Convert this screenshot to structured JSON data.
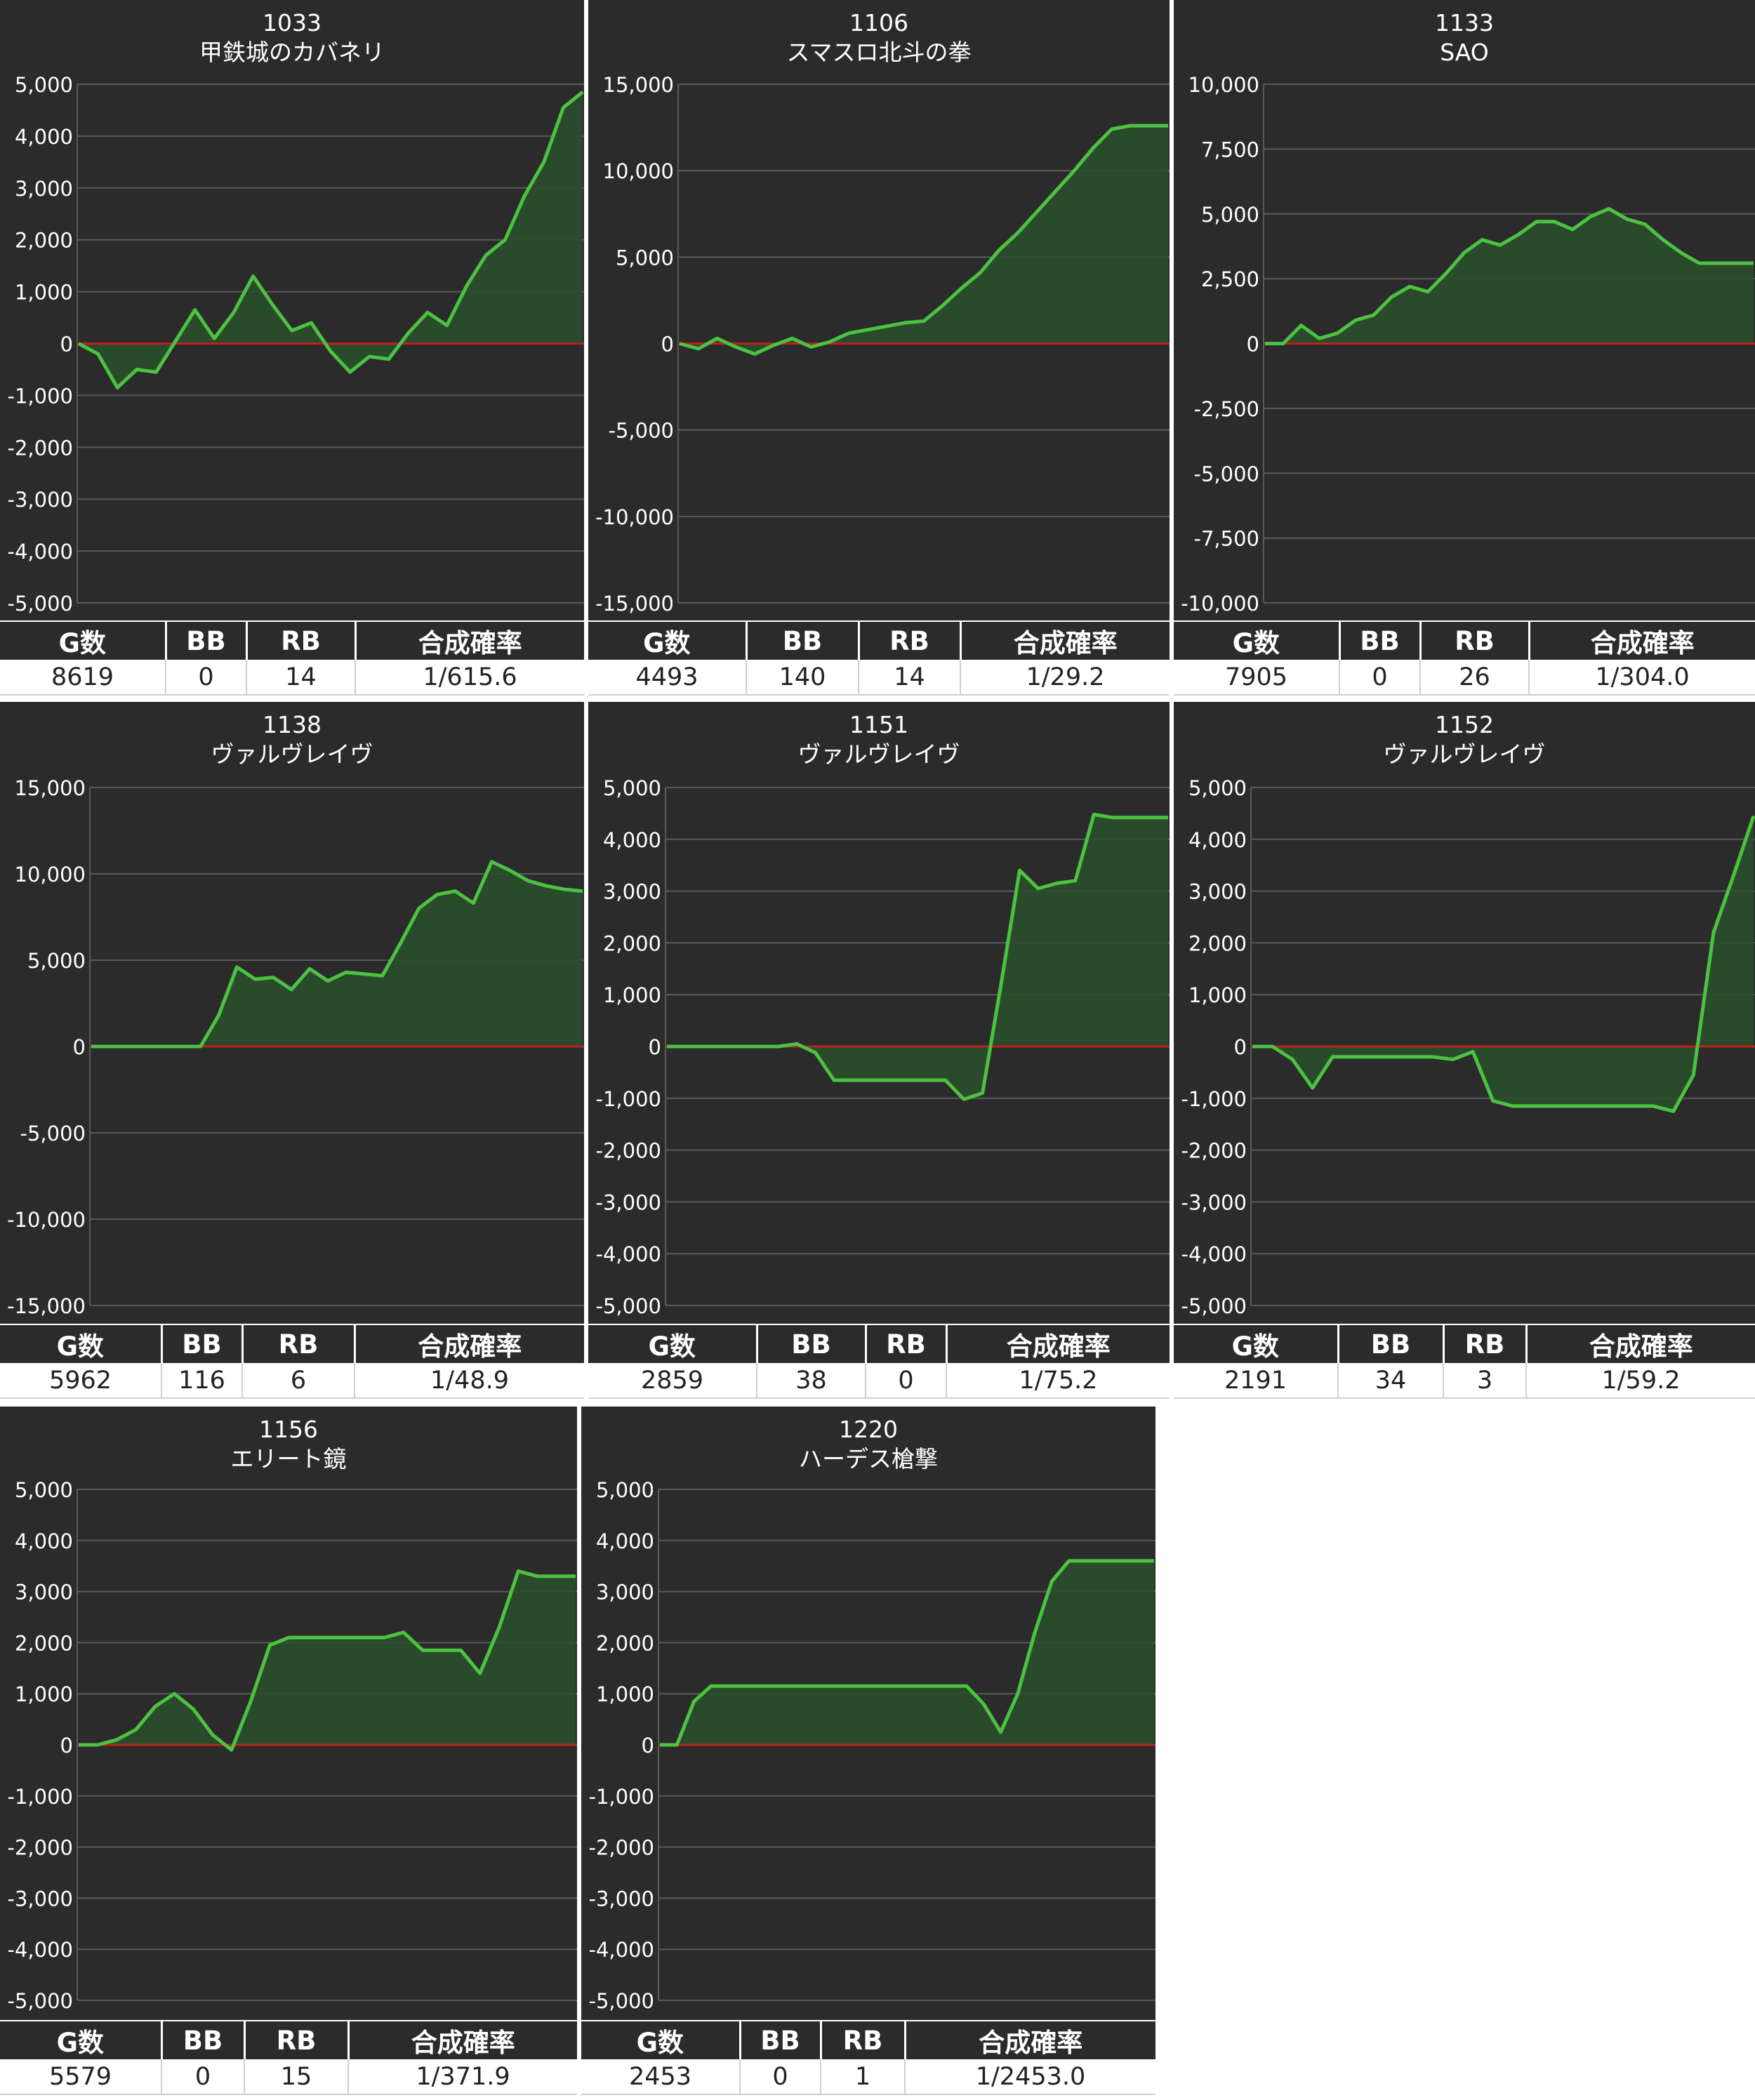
{
  "colors": {
    "background": "#2b2b2b",
    "grid": "#5a5a5a",
    "zero_line": "#c0201e",
    "line": "#4cc242",
    "fill": "#2a4f2b",
    "axis_text": "#ffffff",
    "header_text": "#ffffff"
  },
  "table_headers": [
    "G数",
    "BB",
    "RB",
    "合成確率"
  ],
  "charts": [
    {
      "id": "c1033",
      "machine_no": "1033",
      "name": "甲鉄城のカバネリ",
      "stats": {
        "g": "8619",
        "bb": "0",
        "rb": "14",
        "prob": "1/615.6"
      },
      "chart_data": {
        "type": "area",
        "title": "1033",
        "subtitle": "甲鉄城のカバネリ",
        "ylim": [
          -5000,
          5000
        ],
        "yticks": [
          "5,000",
          "4,000",
          "3,000",
          "2,000",
          "1,000",
          "0",
          "-1,000",
          "-2,000",
          "-3,000",
          "-4,000",
          "-5,000"
        ],
        "y": [
          0,
          -200,
          -850,
          -500,
          -550,
          50,
          650,
          100,
          600,
          1300,
          750,
          250,
          400,
          -150,
          -550,
          -250,
          -300,
          200,
          600,
          350,
          1100,
          1700,
          2000,
          2850,
          3500,
          4550,
          4850
        ]
      }
    },
    {
      "id": "c1106",
      "machine_no": "1106",
      "name": "スマスロ北斗の拳",
      "stats": {
        "g": "4493",
        "bb": "140",
        "rb": "14",
        "prob": "1/29.2"
      },
      "chart_data": {
        "type": "area",
        "title": "1106",
        "subtitle": "スマスロ北斗の拳",
        "ylim": [
          -15000,
          15000
        ],
        "yticks": [
          "15,000",
          "10,000",
          "5,000",
          "0",
          "-5,000",
          "-10,000",
          "-15,000"
        ],
        "y": [
          0,
          -300,
          300,
          -200,
          -600,
          -100,
          300,
          -200,
          100,
          600,
          800,
          1000,
          1200,
          1300,
          2200,
          3200,
          4100,
          5400,
          6400,
          7600,
          8800,
          10000,
          11300,
          12400,
          12600,
          12600,
          12600
        ]
      }
    },
    {
      "id": "c1133",
      "machine_no": "1133",
      "name": "SAO",
      "stats": {
        "g": "7905",
        "bb": "0",
        "rb": "26",
        "prob": "1/304.0"
      },
      "chart_data": {
        "type": "area",
        "title": "1133",
        "subtitle": "SAO",
        "ylim": [
          -10000,
          10000
        ],
        "yticks": [
          "10,000",
          "7,500",
          "5,000",
          "2,500",
          "0",
          "-2,500",
          "-5,000",
          "-7,500",
          "-10,000"
        ],
        "y": [
          0,
          0,
          700,
          200,
          400,
          900,
          1100,
          1800,
          2200,
          2000,
          2700,
          3500,
          4000,
          3800,
          4200,
          4700,
          4700,
          4400,
          4900,
          5200,
          4800,
          4600,
          4000,
          3500,
          3100,
          3100,
          3100,
          3100
        ]
      }
    },
    {
      "id": "c1138",
      "machine_no": "1138",
      "name": "ヴァルヴレイヴ",
      "stats": {
        "g": "5962",
        "bb": "116",
        "rb": "6",
        "prob": "1/48.9"
      },
      "chart_data": {
        "type": "area",
        "title": "1138",
        "subtitle": "ヴァルヴレイヴ",
        "ylim": [
          -15000,
          15000
        ],
        "yticks": [
          "15,000",
          "10,000",
          "5,000",
          "0",
          "-5,000",
          "-10,000",
          "-15,000"
        ],
        "y": [
          0,
          0,
          0,
          0,
          0,
          0,
          0,
          1800,
          4600,
          3900,
          4000,
          3300,
          4500,
          3800,
          4300,
          4200,
          4100,
          6000,
          8000,
          8800,
          9000,
          8300,
          10700,
          10200,
          9600,
          9300,
          9100,
          9000
        ]
      }
    },
    {
      "id": "c1151",
      "machine_no": "1151",
      "name": "ヴァルヴレイヴ",
      "stats": {
        "g": "2859",
        "bb": "38",
        "rb": "0",
        "prob": "1/75.2"
      },
      "chart_data": {
        "type": "area",
        "title": "1151",
        "subtitle": "ヴァルヴレイヴ",
        "ylim": [
          -5000,
          5000
        ],
        "yticks": [
          "5,000",
          "4,000",
          "3,000",
          "2,000",
          "1,000",
          "0",
          "-1,000",
          "-2,000",
          "-3,000",
          "-4,000",
          "-5,000"
        ],
        "y": [
          0,
          0,
          0,
          0,
          0,
          0,
          0,
          50,
          -120,
          -650,
          -650,
          -650,
          -650,
          -650,
          -650,
          -650,
          -1020,
          -900,
          1200,
          3400,
          3050,
          3150,
          3200,
          4480,
          4420,
          4420,
          4420,
          4420
        ]
      }
    },
    {
      "id": "c1152",
      "machine_no": "1152",
      "name": "ヴァルヴレイヴ",
      "stats": {
        "g": "2191",
        "bb": "34",
        "rb": "3",
        "prob": "1/59.2"
      },
      "chart_data": {
        "type": "area",
        "title": "1152",
        "subtitle": "ヴァルヴレイヴ",
        "ylim": [
          -5000,
          5000
        ],
        "yticks": [
          "5,000",
          "4,000",
          "3,000",
          "2,000",
          "1,000",
          "0",
          "-1,000",
          "-2,000",
          "-3,000",
          "-4,000",
          "-5,000"
        ],
        "y": [
          0,
          0,
          -250,
          -800,
          -200,
          -200,
          -200,
          -200,
          -200,
          -200,
          -250,
          -100,
          -1050,
          -1150,
          -1150,
          -1150,
          -1150,
          -1150,
          -1150,
          -1150,
          -1150,
          -1250,
          -550,
          2200,
          3300,
          4450
        ]
      }
    },
    {
      "id": "c1156",
      "machine_no": "1156",
      "name": "エリート鏡",
      "stats": {
        "g": "5579",
        "bb": "0",
        "rb": "15",
        "prob": "1/371.9"
      },
      "chart_data": {
        "type": "area",
        "title": "1156",
        "subtitle": "エリート鏡",
        "ylim": [
          -5000,
          5000
        ],
        "yticks": [
          "5,000",
          "4,000",
          "3,000",
          "2,000",
          "1,000",
          "0",
          "-1,000",
          "-2,000",
          "-3,000",
          "-4,000",
          "-5,000"
        ],
        "y": [
          0,
          0,
          100,
          300,
          750,
          1000,
          700,
          200,
          -100,
          850,
          1950,
          2100,
          2100,
          2100,
          2100,
          2100,
          2100,
          2200,
          1850,
          1850,
          1850,
          1400,
          2300,
          3400,
          3300,
          3300,
          3300
        ]
      }
    },
    {
      "id": "c1220",
      "machine_no": "1220",
      "name": "ハーデス槍撃",
      "stats": {
        "g": "2453",
        "bb": "0",
        "rb": "1",
        "prob": "1/2453.0"
      },
      "chart_data": {
        "type": "area",
        "title": "1220",
        "subtitle": "ハーデス槍撃",
        "ylim": [
          -5000,
          5000
        ],
        "yticks": [
          "5,000",
          "4,000",
          "3,000",
          "2,000",
          "1,000",
          "0",
          "-1,000",
          "-2,000",
          "-3,000",
          "-4,000",
          "-5,000"
        ],
        "y": [
          0,
          0,
          850,
          1150,
          1150,
          1150,
          1150,
          1150,
          1150,
          1150,
          1150,
          1150,
          1150,
          1150,
          1150,
          1150,
          1150,
          1150,
          1150,
          800,
          250,
          1000,
          2200,
          3200,
          3600,
          3600,
          3600,
          3600,
          3600,
          3600
        ]
      }
    }
  ]
}
